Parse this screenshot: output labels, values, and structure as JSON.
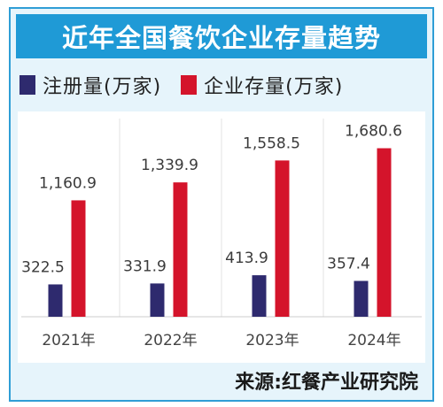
{
  "header": {
    "title": "近年全国餐饮企业存量趋势"
  },
  "legend": {
    "items": [
      {
        "label": "注册量(万家)",
        "color": "#2e2a6e"
      },
      {
        "label": "企业存量(万家)",
        "color": "#d4142b"
      }
    ]
  },
  "footer": {
    "source": "来源:红餐产业研究院"
  },
  "chart_data": {
    "type": "bar",
    "categories": [
      "2021年",
      "2022年",
      "2023年",
      "2024年"
    ],
    "series": [
      {
        "name": "注册量(万家)",
        "values": [
          322.5,
          331.9,
          413.9,
          357.4
        ],
        "labels": [
          "322.5",
          "331.9",
          "413.9",
          "357.4"
        ],
        "color": "#2e2a6e"
      },
      {
        "name": "企业存量(万家)",
        "values": [
          1160.9,
          1339.9,
          1558.5,
          1680.6
        ],
        "labels": [
          "1,160.9",
          "1,339.9",
          "1,558.5",
          "1,680.6"
        ],
        "color": "#d4142b"
      }
    ],
    "ylim": [
      0,
      1800
    ],
    "grid": false
  }
}
